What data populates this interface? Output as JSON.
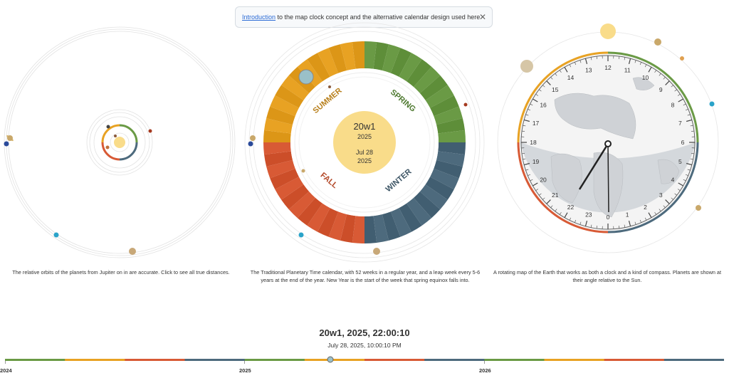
{
  "banner": {
    "link_text": "Introduction",
    "text": " to the map clock concept and the alternative calendar design used here",
    "close_icon": "close-icon"
  },
  "orbits_panel": {
    "caption": "The relative orbits of the planets from Jupiter on in are accurate. Click to see all true distances."
  },
  "calendar_panel": {
    "week_label": "20w1",
    "year_label": "2025",
    "date_label": "Jul 28",
    "date_year_label": "2025",
    "seasons": {
      "summer": "SUMMER",
      "spring": "SPRING",
      "fall": "FALL",
      "winter": "WINTER"
    },
    "caption": "The Traditional Planetary Time calendar, with 52 weeks in a regular year, and a leap week every 5-6 years at the end of the year. New Year is the start of the week that spring equinox falls into."
  },
  "clock_panel": {
    "hour_labels": [
      "0",
      "1",
      "2",
      "3",
      "4",
      "5",
      "6",
      "7",
      "8",
      "9",
      "10",
      "11",
      "12",
      "13",
      "14",
      "15",
      "16",
      "17",
      "18",
      "19",
      "20",
      "21",
      "22",
      "23"
    ],
    "caption": "A rotating map of the Earth that works as both a clock and a kind of compass. Planets are shown at their angle relative to the Sun."
  },
  "current": {
    "main": "20w1, 2025, 22:00:10",
    "sub": "July 28, 2025, 10:00:10 PM"
  },
  "timeline": {
    "labels": [
      "2024",
      "2025",
      "2026"
    ],
    "segment_colors": [
      "#6a9a45",
      "#e8a223",
      "#d85a35",
      "#4d6a7d"
    ]
  },
  "colors": {
    "spring": "#6a9a45",
    "summer": "#e8a223",
    "fall": "#d85a35",
    "winter": "#4d6a7d",
    "sun": "#f9dc8a",
    "link": "#2b6bd6"
  }
}
